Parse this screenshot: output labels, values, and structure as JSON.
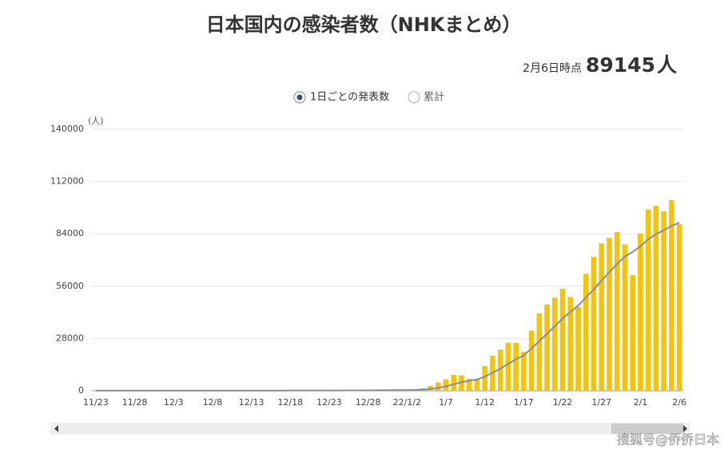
{
  "chart_data": {
    "type": "bar_line",
    "title": "日本国内の感染者数（NHKまとめ）",
    "as_of_label": "2月6日時点",
    "headline_value": "89145",
    "headline_unit": "人",
    "options": [
      {
        "label": "1日ごとの発表数",
        "selected": true
      },
      {
        "label": "累計",
        "selected": false
      }
    ],
    "y_unit_label": "(人)",
    "watermark": "搜狐号@侨侨日本",
    "categories": [
      "11/23",
      null,
      null,
      null,
      null,
      "11/28",
      null,
      null,
      null,
      null,
      "12/3",
      null,
      null,
      null,
      null,
      "12/8",
      null,
      null,
      null,
      null,
      "12/13",
      null,
      null,
      null,
      null,
      "12/18",
      null,
      null,
      null,
      null,
      "12/23",
      null,
      null,
      null,
      null,
      "12/28",
      null,
      null,
      null,
      null,
      "22/1/2",
      null,
      null,
      null,
      null,
      "1/7",
      null,
      null,
      null,
      null,
      "1/12",
      null,
      null,
      null,
      null,
      "1/17",
      null,
      null,
      null,
      null,
      "1/22",
      null,
      null,
      null,
      null,
      "1/27",
      null,
      null,
      null,
      null,
      "2/1",
      null,
      null,
      null,
      null,
      "2/6"
    ],
    "series": [
      {
        "name": "1日ごとの発表数",
        "kind": "bar",
        "color": "#f2c40f",
        "values": [
          80,
          120,
          130,
          120,
          130,
          110,
          90,
          80,
          120,
          140,
          130,
          120,
          130,
          100,
          80,
          120,
          140,
          130,
          120,
          130,
          100,
          90,
          140,
          170,
          170,
          190,
          180,
          150,
          150,
          180,
          220,
          250,
          260,
          290,
          250,
          200,
          380,
          400,
          550,
          450,
          550,
          780,
          1265,
          2638,
          4475,
          6214,
          8480,
          8249,
          6438,
          5963,
          13244,
          18861,
          22045,
          25742,
          25635,
          20795,
          32197,
          41485,
          46199,
          49854,
          54576,
          50195,
          44923,
          62612,
          71633,
          78930,
          81801,
          84936,
          78267,
          61974,
          84225,
          97000,
          99000,
          96000,
          102000,
          89145
        ]
      },
      {
        "kind": "line",
        "color": "#8c8c8c",
        "values": [
          110,
          110,
          110,
          110,
          110,
          110,
          110,
          110,
          115,
          118,
          120,
          122,
          124,
          124,
          117,
          120,
          123,
          123,
          123,
          123,
          119,
          114,
          115,
          120,
          127,
          138,
          150,
          154,
          157,
          157,
          165,
          183,
          202,
          222,
          236,
          236,
          264,
          297,
          333,
          360,
          397,
          473,
          625,
          948,
          1530,
          2339,
          3486,
          4586,
          5394,
          6065,
          7580,
          9636,
          11897,
          14363,
          16847,
          18898,
          22646,
          26680,
          30585,
          34558,
          38677,
          42186,
          45633,
          49978,
          54285,
          58960,
          63524,
          67861,
          71872,
          74308,
          77395,
          81019,
          83886,
          85915,
          88352,
          89906
        ]
      }
    ],
    "ylim": [
      0,
      140000
    ],
    "yticks": [
      0,
      28000,
      56000,
      84000,
      112000,
      140000
    ],
    "grid": true
  }
}
